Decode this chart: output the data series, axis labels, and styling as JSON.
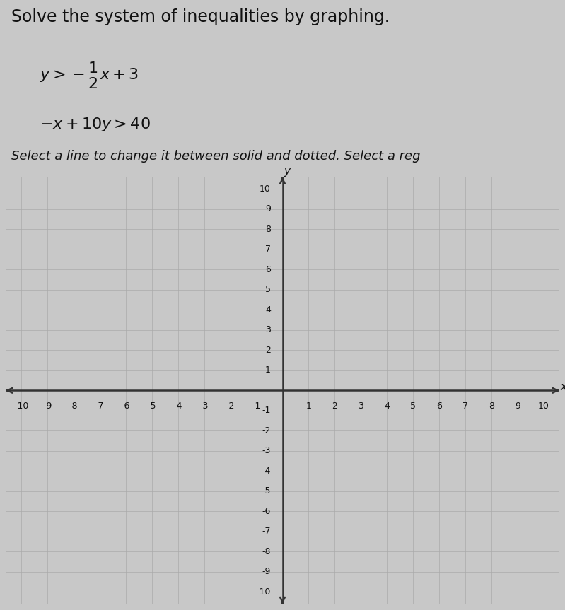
{
  "title": "Solve the system of inequalities by graphing.",
  "eq1_latex": "$y > -\\dfrac{1}{2}x + 3$",
  "eq2_latex": "$-x + 10y > 40$",
  "instruction": "Select a line to change it between solid and dotted. Select a reg",
  "xlim": [
    -10,
    10
  ],
  "ylim": [
    -10,
    10
  ],
  "xlabel": "x",
  "ylabel": "y",
  "bg_color": "#c8c8c8",
  "plot_bg_color": "#c8c8c8",
  "grid_color": "#aaaaaa",
  "axis_color": "#333333",
  "text_color": "#111111",
  "title_fontsize": 17,
  "eq_fontsize": 16,
  "instr_fontsize": 13,
  "tick_fontsize": 9,
  "axis_label_fontsize": 11,
  "fig_width": 7.99,
  "fig_height": 8.63,
  "dpi": 100
}
